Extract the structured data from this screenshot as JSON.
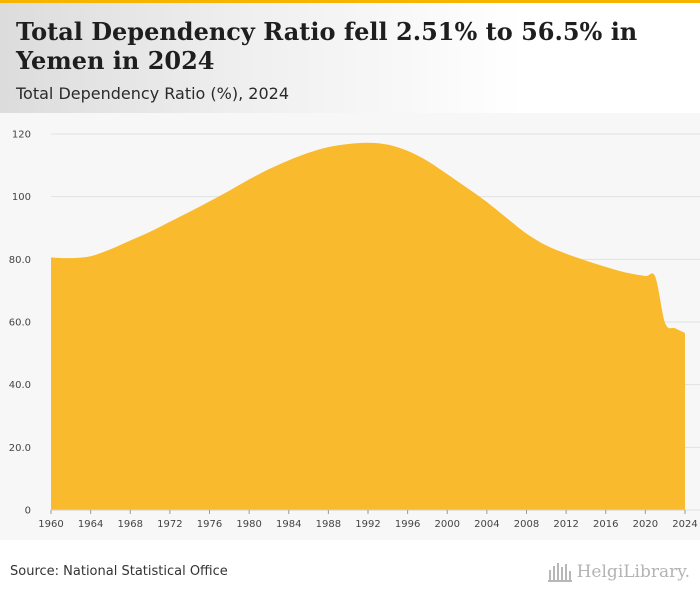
{
  "header": {
    "title": "Total Dependency Ratio fell 2.51% to 56.5% in Yemen in 2024",
    "subtitle": "Total Dependency Ratio (%), 2024"
  },
  "footer": {
    "source": "Source: National Statistical Office",
    "logo_text": "HelgiLibrary."
  },
  "colors": {
    "fill": "#f9bb2d",
    "accent": "#f5b500"
  },
  "chart_data": {
    "type": "area",
    "title": "Total Dependency Ratio fell 2.51% to 56.5% in Yemen in 2024",
    "subtitle": "Total Dependency Ratio (%), 2024",
    "xlabel": "",
    "ylabel": "",
    "ylim": [
      0,
      120
    ],
    "xlim": [
      1960,
      2024
    ],
    "y_ticks": [
      "0",
      "20.0",
      "40.0",
      "60.0",
      "80.0",
      "100",
      "120"
    ],
    "y_tick_values": [
      0,
      20,
      40,
      60,
      80,
      100,
      120
    ],
    "x_ticks": [
      "1960",
      "1964",
      "1968",
      "1972",
      "1976",
      "1980",
      "1984",
      "1988",
      "1992",
      "1996",
      "2000",
      "2004",
      "2008",
      "2012",
      "2016",
      "2020",
      "2024"
    ],
    "grid": true,
    "series": [
      {
        "name": "Total Dependency Ratio (%)",
        "x": [
          1960,
          1962,
          1964,
          1966,
          1968,
          1970,
          1972,
          1974,
          1976,
          1978,
          1980,
          1982,
          1984,
          1986,
          1988,
          1990,
          1992,
          1994,
          1996,
          1998,
          2000,
          2002,
          2004,
          2006,
          2008,
          2010,
          2012,
          2014,
          2016,
          2018,
          2020,
          2021,
          2022,
          2023,
          2024
        ],
        "values": [
          80.6,
          80.4,
          81.0,
          83.2,
          86.0,
          88.8,
          92.0,
          95.2,
          98.5,
          101.9,
          105.5,
          108.8,
          111.6,
          114.0,
          115.8,
          116.8,
          117.2,
          116.6,
          114.6,
          111.4,
          107.2,
          102.8,
          98.3,
          93.2,
          88.2,
          84.4,
          81.8,
          79.6,
          77.6,
          75.8,
          74.7,
          74.4,
          59.6,
          58.0,
          56.5
        ]
      }
    ]
  }
}
